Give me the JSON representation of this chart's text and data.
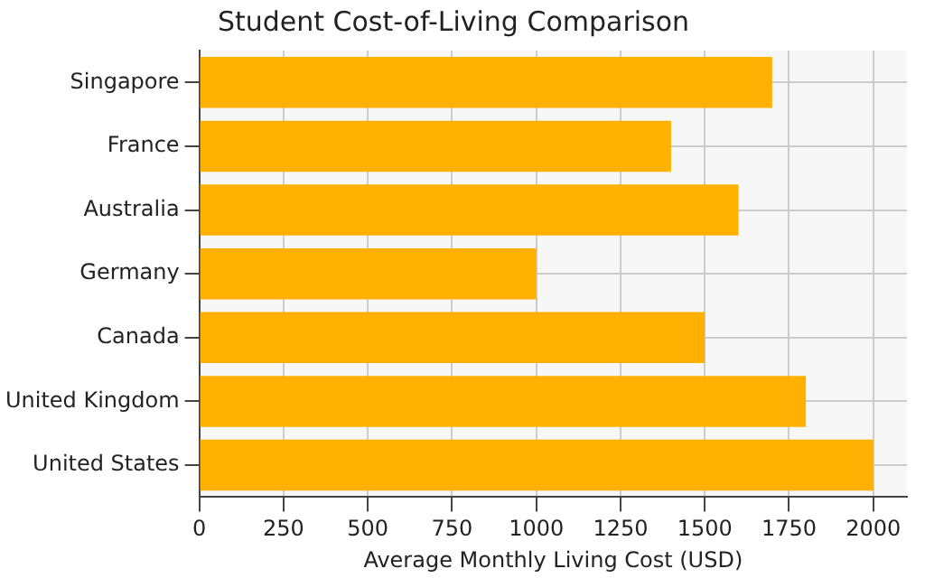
{
  "chart_data": {
    "type": "bar",
    "orientation": "horizontal",
    "title": "Student Cost-of-Living Comparison",
    "xlabel": "Average Monthly Living Cost (USD)",
    "categories": [
      "Singapore",
      "France",
      "Australia",
      "Germany",
      "Canada",
      "United Kingdom",
      "United States"
    ],
    "values": [
      1700,
      1400,
      1600,
      1000,
      1500,
      1800,
      2000
    ],
    "color": "#ffb000",
    "xlim": [
      0,
      2100
    ],
    "xticks": [
      0,
      250,
      500,
      750,
      1000,
      1250,
      1500,
      1750,
      2000
    ],
    "grid": true
  }
}
